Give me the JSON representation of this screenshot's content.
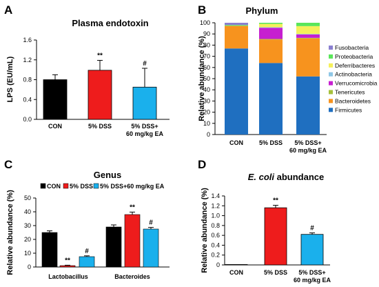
{
  "chart_data": [
    {
      "panel": "A",
      "type": "bar",
      "title": "Plasma endotoxin",
      "ylabel": "LPS (EU/mL)",
      "ylim": [
        0,
        1.6
      ],
      "yticks": [
        "0.0",
        "0.4",
        "0.8",
        "1.2",
        "1.6"
      ],
      "categories": [
        "CON",
        "5% DSS",
        "5% DSS+\n60 mg/kg EA"
      ],
      "values": [
        0.8,
        0.99,
        0.65
      ],
      "errors": [
        0.1,
        0.2,
        0.38
      ],
      "colors": [
        "#000000",
        "#ee1c1c",
        "#1ab0ec"
      ],
      "annotations": [
        "",
        "**",
        "#"
      ]
    },
    {
      "panel": "B",
      "type": "bar",
      "stacked": true,
      "title": "Phylum",
      "ylabel": "Relative abundance (%)",
      "ylim": [
        0,
        100
      ],
      "yticks": [
        "0",
        "10",
        "20",
        "30",
        "40",
        "50",
        "60",
        "70",
        "80",
        "90",
        "100"
      ],
      "categories": [
        "CON",
        "5% DSS",
        "5% DSS+\n60 mg/kg EA"
      ],
      "series": [
        {
          "name": "Firmicutes",
          "color": "#1f6fc0",
          "values": [
            77,
            64,
            52
          ]
        },
        {
          "name": "Bacteroidetes",
          "color": "#f7931e",
          "values": [
            20,
            21,
            34
          ]
        },
        {
          "name": "Tenericutes",
          "color": "#a5c03b",
          "values": [
            0.5,
            0.5,
            0.5
          ]
        },
        {
          "name": "Verrucomicrobia",
          "color": "#c61fd0",
          "values": [
            0,
            10,
            3
          ]
        },
        {
          "name": "Actinobacteria",
          "color": "#8fc7e6",
          "values": [
            0,
            0.5,
            0.5
          ]
        },
        {
          "name": "Deferribacteres",
          "color": "#f5f05a",
          "values": [
            0,
            3,
            7
          ]
        },
        {
          "name": "Proteobacteria",
          "color": "#5ae65a",
          "values": [
            0.5,
            1,
            3
          ]
        },
        {
          "name": "Fusobacteria",
          "color": "#8a7fd0",
          "values": [
            2,
            0,
            0
          ]
        }
      ]
    },
    {
      "panel": "C",
      "type": "bar",
      "title": "Genus",
      "ylabel": "Relative abundance (%)",
      "ylim": [
        0,
        50
      ],
      "yticks": [
        "0",
        "10",
        "20",
        "30",
        "40",
        "50"
      ],
      "categories": [
        "Lactobacillus",
        "Bacteroides"
      ],
      "series": [
        {
          "name": "CON",
          "color": "#000000",
          "values": [
            25,
            29
          ],
          "errors": [
            1.2,
            1.5
          ],
          "annotations": [
            "",
            ""
          ]
        },
        {
          "name": "5% DSS",
          "color": "#ee1c1c",
          "values": [
            1,
            38
          ],
          "errors": [
            0.3,
            1.8
          ],
          "annotations": [
            "**",
            "**"
          ]
        },
        {
          "name": "5% DSS+60 mg/kg EA",
          "color": "#1ab0ec",
          "values": [
            7.5,
            27.5
          ],
          "errors": [
            0.6,
            1.2
          ],
          "annotations": [
            "#",
            "#"
          ]
        }
      ]
    },
    {
      "panel": "D",
      "type": "bar",
      "title_italic": "E. coli",
      "title_rest": " abundance",
      "ylabel": "Relative abundance (%)",
      "ylim": [
        0,
        1.4
      ],
      "yticks": [
        "0",
        "0.2",
        "0.4",
        "0.6",
        "0.8",
        "1.0",
        "1.2",
        "1.4"
      ],
      "categories": [
        "CON",
        "5% DSS",
        "5% DSS+\n60 mg/kg EA"
      ],
      "values": [
        0.005,
        1.16,
        0.62
      ],
      "errors": [
        0,
        0.05,
        0.03
      ],
      "colors": [
        "#000000",
        "#ee1c1c",
        "#1ab0ec"
      ],
      "annotations": [
        "",
        "**",
        "#"
      ]
    }
  ]
}
